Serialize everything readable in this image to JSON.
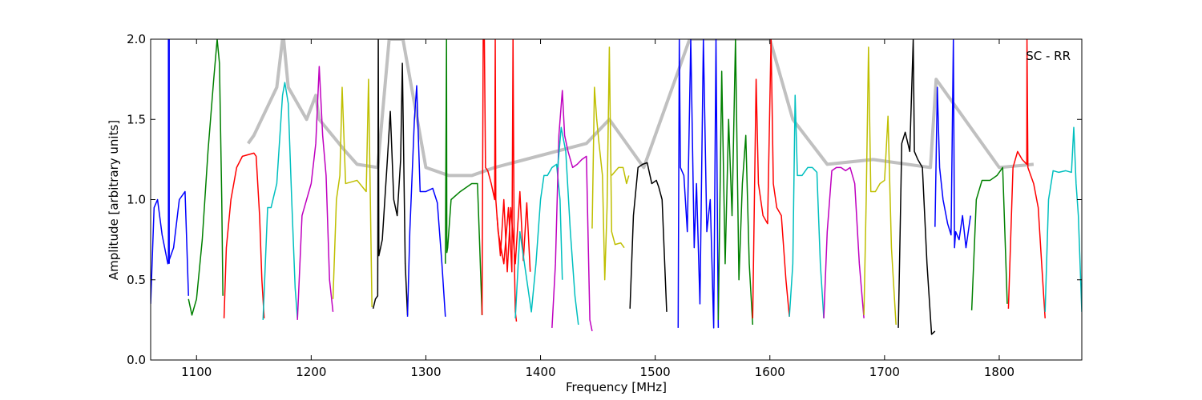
{
  "chart_data": {
    "type": "line",
    "title": "",
    "annotation": "SC - RR",
    "xlabel": "Frequency [MHz]",
    "ylabel": "Amplitude [arbitrary units]",
    "xlim": [
      1060,
      1872
    ],
    "ylim": [
      0.0,
      2.0
    ],
    "xticks": [
      1100,
      1200,
      1300,
      1400,
      1500,
      1600,
      1700,
      1800
    ],
    "yticks": [
      0.0,
      0.5,
      1.0,
      1.5,
      2.0
    ],
    "xtick_labels": [
      "1100",
      "1200",
      "1300",
      "1400",
      "1500",
      "1600",
      "1700",
      "1800"
    ],
    "ytick_labels": [
      "0.0",
      "0.5",
      "1.0",
      "1.5",
      "2.0"
    ],
    "grid": false,
    "background_color": "#c0c0c0",
    "colors": {
      "blue": "#0000ff",
      "green": "#008000",
      "red": "#ff0000",
      "cyan": "#00bfbf",
      "magenta": "#bf00bf",
      "yellow": "#bfbf00",
      "black": "#000000"
    },
    "series": [
      {
        "color": "blue",
        "x": [
          1060,
          1063,
          1066,
          1070,
          1075,
          1080,
          1085,
          1090,
          1093
        ],
        "y": [
          0.35,
          0.95,
          1.0,
          0.78,
          0.6,
          0.7,
          1.0,
          1.05,
          0.4
        ]
      },
      {
        "color": "blue",
        "x": [
          1075.5,
          1075.5,
          1076.2,
          1076.2
        ],
        "y": [
          0.6,
          2.0,
          2.0,
          0.6
        ]
      },
      {
        "color": "green",
        "x": [
          1093,
          1096,
          1100,
          1105,
          1110,
          1115,
          1118,
          1120,
          1122,
          1123
        ],
        "y": [
          0.38,
          0.28,
          0.38,
          0.75,
          1.3,
          1.75,
          2.0,
          1.85,
          1.0,
          0.4
        ]
      },
      {
        "color": "red",
        "x": [
          1124,
          1126,
          1130,
          1135,
          1140,
          1145,
          1150,
          1152,
          1155,
          1157,
          1159
        ],
        "y": [
          0.26,
          0.7,
          1.0,
          1.2,
          1.27,
          1.28,
          1.29,
          1.27,
          0.9,
          0.5,
          0.26
        ]
      },
      {
        "color": "cyan",
        "x": [
          1158,
          1162,
          1165,
          1170,
          1175,
          1177,
          1180,
          1183,
          1186,
          1188
        ],
        "y": [
          0.25,
          0.95,
          0.95,
          1.1,
          1.65,
          1.73,
          1.6,
          1.0,
          0.45,
          0.26
        ]
      },
      {
        "color": "magenta",
        "x": [
          1188,
          1192,
          1196,
          1200,
          1204,
          1207,
          1210,
          1213,
          1216,
          1219
        ],
        "y": [
          0.25,
          0.9,
          1.0,
          1.1,
          1.35,
          1.83,
          1.4,
          1.15,
          0.5,
          0.3
        ]
      },
      {
        "color": "yellow",
        "x": [
          1219,
          1222,
          1225,
          1227,
          1230,
          1240,
          1248,
          1250,
          1253
        ],
        "y": [
          0.38,
          1.0,
          1.15,
          1.7,
          1.1,
          1.12,
          1.05,
          1.75,
          0.33
        ]
      },
      {
        "color": "black",
        "x": [
          1254,
          1256,
          1258,
          1258.5,
          1259,
          1262,
          1266,
          1269,
          1272,
          1275,
          1278,
          1279.5,
          1282,
          1284
        ],
        "y": [
          0.32,
          0.38,
          0.4,
          2.0,
          0.65,
          0.75,
          1.2,
          1.55,
          1.0,
          0.9,
          1.25,
          1.85,
          0.6,
          0.28
        ]
      },
      {
        "color": "blue",
        "x": [
          1284,
          1286,
          1290,
          1292,
          1295,
          1300,
          1306,
          1310,
          1314,
          1317
        ],
        "y": [
          0.27,
          0.8,
          1.5,
          1.71,
          1.05,
          1.05,
          1.07,
          0.98,
          0.6,
          0.27
        ]
      },
      {
        "color": "green",
        "x": [
          1317,
          1318,
          1318.3,
          1319,
          1322,
          1330,
          1340,
          1345,
          1347,
          1349
        ],
        "y": [
          0.6,
          2.0,
          0.67,
          0.7,
          1.0,
          1.05,
          1.1,
          1.1,
          0.7,
          0.28
        ]
      },
      {
        "color": "red",
        "x": [
          1349,
          1350,
          1351,
          1352,
          1354,
          1357,
          1360,
          1360.5,
          1361,
          1363,
          1368,
          1372,
          1375,
          1376,
          1377,
          1378,
          1379
        ],
        "y": [
          0.28,
          2.0,
          2.0,
          1.2,
          1.18,
          1.1,
          1.0,
          2.0,
          1.0,
          0.8,
          0.6,
          0.95,
          0.55,
          2.0,
          0.7,
          0.3,
          0.24
        ]
      },
      {
        "color": "red",
        "x": [
          1362,
          1365,
          1368,
          1371,
          1374,
          1378,
          1382,
          1385,
          1388,
          1391
        ],
        "y": [
          0.9,
          0.65,
          1.0,
          0.55,
          0.95,
          0.6,
          1.05,
          0.62,
          0.98,
          0.55
        ]
      },
      {
        "color": "cyan",
        "x": [
          1378,
          1382,
          1388,
          1392,
          1396,
          1400,
          1403,
          1406,
          1410,
          1414,
          1417,
          1419
        ],
        "y": [
          0.26,
          0.8,
          0.5,
          0.3,
          0.6,
          1.0,
          1.15,
          1.15,
          1.2,
          1.22,
          1.0,
          0.5
        ]
      },
      {
        "color": "magenta",
        "x": [
          1410,
          1413,
          1416,
          1419,
          1421,
          1424,
          1428,
          1432,
          1436,
          1440,
          1443,
          1445
        ],
        "y": [
          0.2,
          0.6,
          1.4,
          1.68,
          1.4,
          1.3,
          1.2,
          1.22,
          1.25,
          1.27,
          0.25,
          0.18
        ]
      },
      {
        "color": "cyan",
        "x": [
          1415,
          1418,
          1422,
          1426,
          1430,
          1433
        ],
        "y": [
          1.2,
          1.45,
          1.3,
          0.8,
          0.4,
          0.22
        ]
      },
      {
        "color": "yellow",
        "x": [
          1445,
          1447,
          1449,
          1451,
          1454,
          1456,
          1458,
          1460,
          1462,
          1465,
          1470,
          1473
        ],
        "y": [
          0.82,
          1.7,
          1.5,
          1.35,
          1.15,
          0.5,
          0.95,
          1.95,
          0.8,
          0.72,
          0.73,
          0.7
        ]
      },
      {
        "color": "yellow",
        "x": [
          1462,
          1468,
          1472,
          1475,
          1477
        ],
        "y": [
          1.15,
          1.2,
          1.2,
          1.1,
          1.15
        ]
      },
      {
        "color": "black",
        "x": [
          1478,
          1481,
          1485,
          1489,
          1493,
          1497,
          1501,
          1503,
          1506,
          1510
        ],
        "y": [
          0.32,
          0.9,
          1.2,
          1.22,
          1.23,
          1.1,
          1.12,
          1.08,
          1.0,
          0.3
        ]
      },
      {
        "color": "blue",
        "x": [
          1520,
          1521,
          1522,
          1525,
          1528,
          1531,
          1534,
          1536,
          1539,
          1542,
          1545,
          1548,
          1551,
          1553,
          1555
        ],
        "y": [
          0.2,
          2.0,
          1.2,
          1.15,
          0.8,
          2.0,
          0.7,
          1.1,
          0.35,
          2.0,
          0.8,
          1.0,
          0.2,
          2.0,
          0.2
        ]
      },
      {
        "color": "green",
        "x": [
          1555,
          1558,
          1561,
          1564,
          1567,
          1570,
          1573,
          1576,
          1579,
          1582,
          1585
        ],
        "y": [
          0.25,
          1.8,
          0.6,
          1.5,
          0.9,
          2.0,
          0.5,
          1.1,
          1.4,
          0.6,
          0.22
        ]
      },
      {
        "color": "red",
        "x": [
          1585,
          1588,
          1590,
          1594,
          1598,
          1601,
          1603,
          1606,
          1610,
          1614,
          1617
        ],
        "y": [
          0.26,
          1.75,
          1.1,
          0.9,
          0.85,
          2.0,
          1.1,
          0.95,
          0.9,
          0.5,
          0.27
        ]
      },
      {
        "color": "cyan",
        "x": [
          1617,
          1620,
          1622,
          1624,
          1628,
          1633,
          1637,
          1641,
          1644,
          1647
        ],
        "y": [
          0.27,
          0.6,
          1.65,
          1.15,
          1.15,
          1.2,
          1.2,
          1.17,
          0.6,
          0.26
        ]
      },
      {
        "color": "magenta",
        "x": [
          1647,
          1650,
          1654,
          1658,
          1662,
          1666,
          1670,
          1674,
          1678,
          1682
        ],
        "y": [
          0.26,
          0.8,
          1.18,
          1.2,
          1.2,
          1.18,
          1.2,
          1.1,
          0.6,
          0.26
        ]
      },
      {
        "color": "yellow",
        "x": [
          1682,
          1684,
          1686,
          1688,
          1692,
          1696,
          1700,
          1703,
          1706,
          1710
        ],
        "y": [
          0.28,
          1.0,
          1.95,
          1.05,
          1.05,
          1.1,
          1.12,
          1.52,
          0.7,
          0.22
        ]
      },
      {
        "color": "black",
        "x": [
          1712,
          1715,
          1718,
          1722,
          1725,
          1726,
          1729,
          1733,
          1737,
          1741,
          1744
        ],
        "y": [
          0.2,
          1.35,
          1.42,
          1.3,
          2.0,
          1.3,
          1.25,
          1.2,
          0.6,
          0.16,
          0.18
        ]
      },
      {
        "color": "blue",
        "x": [
          1744,
          1746,
          1748,
          1751,
          1755,
          1758,
          1760,
          1761,
          1762,
          1765,
          1768,
          1771,
          1775
        ],
        "y": [
          0.83,
          1.7,
          1.2,
          1.0,
          0.85,
          0.78,
          2.0,
          0.7,
          0.8,
          0.75,
          0.9,
          0.7,
          0.9
        ]
      },
      {
        "color": "green",
        "x": [
          1776,
          1780,
          1785,
          1792,
          1798,
          1803,
          1807
        ],
        "y": [
          0.31,
          1.0,
          1.12,
          1.12,
          1.15,
          1.2,
          0.35
        ]
      },
      {
        "color": "red",
        "x": [
          1808,
          1812,
          1816,
          1820,
          1824,
          1824.2,
          1825,
          1830,
          1834,
          1837,
          1840
        ],
        "y": [
          0.32,
          1.2,
          1.3,
          1.25,
          1.22,
          2.0,
          1.2,
          1.1,
          0.95,
          0.6,
          0.26
        ]
      },
      {
        "color": "cyan",
        "x": [
          1840,
          1843,
          1847,
          1852,
          1858,
          1863,
          1865,
          1867,
          1869,
          1872
        ],
        "y": [
          0.3,
          1.0,
          1.18,
          1.17,
          1.18,
          1.17,
          1.45,
          1.1,
          0.9,
          0.3
        ]
      }
    ],
    "background_series": {
      "color": "#c0c0c0",
      "x": [
        1145,
        1150,
        1170,
        1175,
        1176,
        1180,
        1196,
        1204,
        1207,
        1230,
        1240,
        1258,
        1268,
        1280,
        1300,
        1320,
        1340,
        1360,
        1440,
        1460,
        1485,
        1490,
        1530,
        1540,
        1600,
        1620,
        1650,
        1690,
        1740,
        1745,
        1800,
        1830
      ],
      "y": [
        1.35,
        1.4,
        1.7,
        2.0,
        2.0,
        1.7,
        1.5,
        1.65,
        1.5,
        1.3,
        1.22,
        1.2,
        2.0,
        2.0,
        1.2,
        1.15,
        1.15,
        1.2,
        1.35,
        1.5,
        1.25,
        1.2,
        2.0,
        2.0,
        2.0,
        1.5,
        1.22,
        1.25,
        1.2,
        1.75,
        1.2,
        1.22
      ]
    }
  }
}
